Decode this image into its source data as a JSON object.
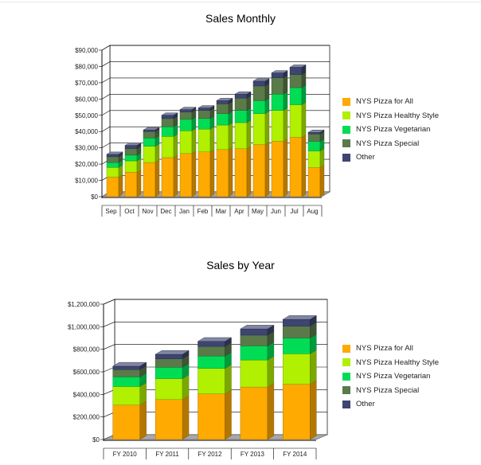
{
  "chart_data": [
    {
      "type": "bar",
      "stacked": true,
      "title": "Sales Monthly",
      "categories": [
        "Sep",
        "Oct",
        "Nov",
        "Dec",
        "Jan",
        "Feb",
        "Mar",
        "Apr",
        "May",
        "Jun",
        "Jul",
        "Aug"
      ],
      "y_ticks": [
        "$0",
        "$10,000",
        "$20,000",
        "$30,000",
        "$40,000",
        "$50,000",
        "$60,000",
        "$70,000",
        "$80,000",
        "$90,000"
      ],
      "ylim": [
        0,
        90000
      ],
      "legend_position": "right",
      "series": [
        {
          "name": "NYS Pizza for All",
          "color": "#ffaa00",
          "values": [
            12000,
            15000,
            21000,
            24000,
            26500,
            27500,
            29000,
            29500,
            32000,
            34000,
            36500,
            18000
          ]
        },
        {
          "name": "NYS Pizza Healthy Style",
          "color": "#b0f000",
          "values": [
            6000,
            7000,
            10000,
            13000,
            14000,
            14000,
            15000,
            16000,
            19000,
            19000,
            20000,
            10000
          ]
        },
        {
          "name": "NYS Pizza Vegetarian",
          "color": "#00dd55",
          "values": [
            3000,
            3500,
            5000,
            6000,
            7000,
            6500,
            7000,
            7500,
            8000,
            10000,
            10500,
            6000
          ]
        },
        {
          "name": "NYS Pizza Special",
          "color": "#5a7a4a",
          "values": [
            3500,
            4000,
            4000,
            5000,
            4500,
            5000,
            6000,
            7500,
            9000,
            10000,
            8000,
            4500
          ]
        },
        {
          "name": "Other",
          "color": "#3d4570",
          "values": [
            1500,
            2000,
            1000,
            2000,
            1500,
            1500,
            2000,
            2500,
            3000,
            3000,
            4500,
            1000
          ]
        }
      ]
    },
    {
      "type": "bar",
      "stacked": true,
      "title": "Sales by Year",
      "categories": [
        "FY 2010",
        "FY 2011",
        "FY 2012",
        "FY 2013",
        "FY 2014"
      ],
      "y_ticks": [
        "$0",
        "$200,000",
        "$400,000",
        "$600,000",
        "$800,000",
        "$1,000,000",
        "$1,200,000"
      ],
      "ylim": [
        0,
        1200000
      ],
      "legend_position": "right",
      "series": [
        {
          "name": "NYS Pizza for All",
          "color": "#ffaa00",
          "values": [
            305000,
            355000,
            405000,
            465000,
            490000
          ]
        },
        {
          "name": "NYS Pizza Healthy Style",
          "color": "#b0f000",
          "values": [
            165000,
            185000,
            225000,
            240000,
            270000
          ]
        },
        {
          "name": "NYS Pizza Vegetarian",
          "color": "#00dd55",
          "values": [
            85000,
            100000,
            110000,
            125000,
            140000
          ]
        },
        {
          "name": "NYS Pizza Special",
          "color": "#5a7a4a",
          "values": [
            65000,
            75000,
            85000,
            95000,
            105000
          ]
        },
        {
          "name": "Other",
          "color": "#3d4570",
          "values": [
            30000,
            40000,
            45000,
            55000,
            60000
          ]
        }
      ]
    }
  ]
}
